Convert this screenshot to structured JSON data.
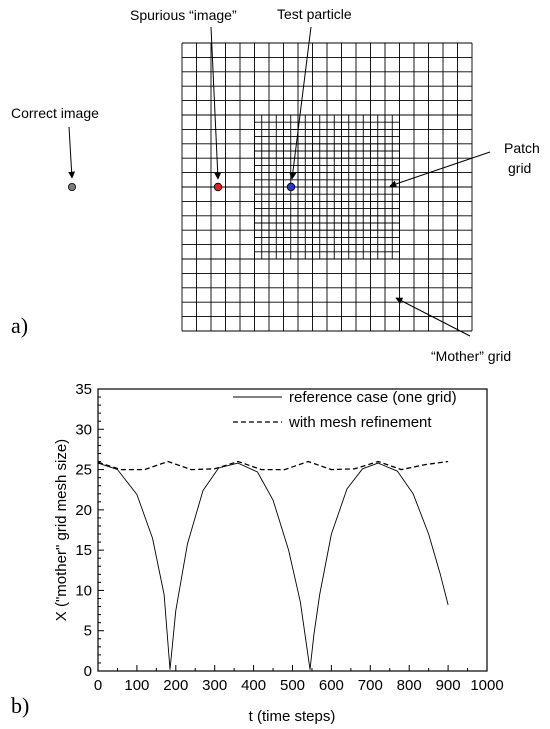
{
  "diagram": {
    "panel_label": "a)",
    "labels": {
      "spurious_image": "Spurious “image”",
      "test_particle": "Test particle",
      "correct_image": "Correct image",
      "patch_grid_line1": "Patch",
      "patch_grid_line2": "grid",
      "mother_grid": "“Mother” grid"
    },
    "colors": {
      "spurious_dot": "#e81c1c",
      "test_dot": "#2b35c8",
      "correct_dot": "#7a7a7a"
    }
  },
  "chart_data": {
    "type": "line",
    "panel_label": "b)",
    "xlabel": "t (time steps)",
    "ylabel": "X (\"mother\" grid mesh size)",
    "xlim": [
      0,
      1000
    ],
    "ylim": [
      0,
      35
    ],
    "x_ticks": [
      "0",
      "100",
      "200",
      "300",
      "400",
      "500",
      "600",
      "700",
      "800",
      "900",
      "1000"
    ],
    "y_ticks": [
      "0",
      "5",
      "10",
      "15",
      "20",
      "25",
      "30",
      "35"
    ],
    "legend_position": "top-right",
    "series": [
      {
        "name": "reference case (one grid)",
        "style": "solid",
        "x": [
          0,
          50,
          100,
          140,
          170,
          185,
          200,
          230,
          270,
          310,
          360,
          410,
          450,
          490,
          520,
          545,
          555,
          570,
          600,
          640,
          680,
          720,
          770,
          810,
          850,
          880,
          900
        ],
        "y": [
          25.8,
          25.0,
          21.9,
          16.5,
          9.5,
          0.2,
          7.5,
          15.8,
          22.4,
          25.2,
          25.8,
          24.7,
          21.2,
          15.0,
          8.6,
          0.2,
          4.5,
          9.5,
          17.0,
          22.6,
          25.1,
          25.8,
          24.8,
          22.0,
          17.0,
          12.0,
          8.2
        ]
      },
      {
        "name": "with mesh refinement",
        "style": "dashed",
        "x": [
          0,
          60,
          120,
          180,
          240,
          300,
          360,
          420,
          480,
          540,
          600,
          660,
          720,
          780,
          840,
          900
        ],
        "y": [
          25.9,
          25.0,
          25.0,
          26.0,
          25.0,
          25.1,
          26.0,
          25.0,
          25.0,
          26.0,
          25.0,
          25.1,
          26.0,
          25.0,
          25.6,
          26.0
        ]
      }
    ]
  }
}
